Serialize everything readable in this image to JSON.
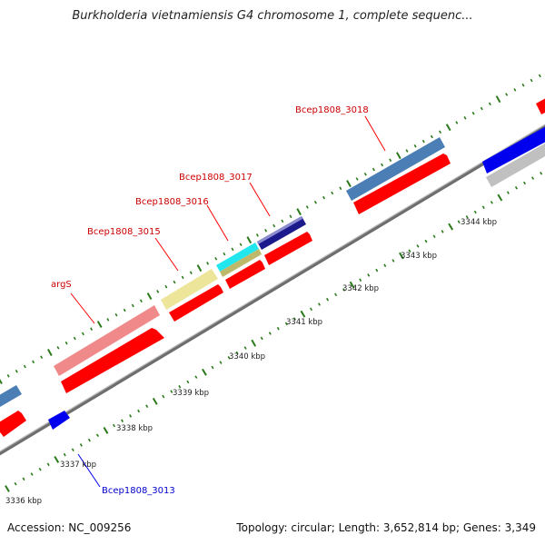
{
  "title": "Burkholderia vietnamiensis G4 chromosome 1, complete sequenc...",
  "footer": {
    "accession": "Accession: NC_009256",
    "summary": "Topology: circular; Length: 3,652,814 bp; Genes: 3,349"
  },
  "colors": {
    "backbone": "#7a7a7a",
    "tick": "#2a7a1a",
    "gene_label": "#cc0000",
    "gene_label_alt": "#0000cc",
    "cds": "#ff0000"
  },
  "scale": {
    "unit": "kbp",
    "labels": [
      "3336 kbp",
      "3337 kbp",
      "3338 kbp",
      "3339 kbp",
      "3340 kbp",
      "3341 kbp",
      "3342 kbp",
      "3343 kbp",
      "3344 kbp"
    ]
  },
  "genes": [
    {
      "name": "Bcep1808_3013",
      "color": "#0000cc",
      "arrow_color": "#0000ee"
    },
    {
      "name": "argS",
      "color": "#cc0000",
      "feature_color": "#f08a8a"
    },
    {
      "name": "Bcep1808_3015",
      "color": "#cc0000",
      "feature_color": "#ede59a"
    },
    {
      "name": "Bcep1808_3016",
      "color": "#cc0000",
      "feature_color": "#22e6ee"
    },
    {
      "name": "Bcep1808_3017",
      "color": "#cc0000",
      "feature_color": "#1a1a8c"
    },
    {
      "name": "Bcep1808_3018",
      "color": "#cc0000",
      "feature_color": "#4a7eb5"
    }
  ]
}
